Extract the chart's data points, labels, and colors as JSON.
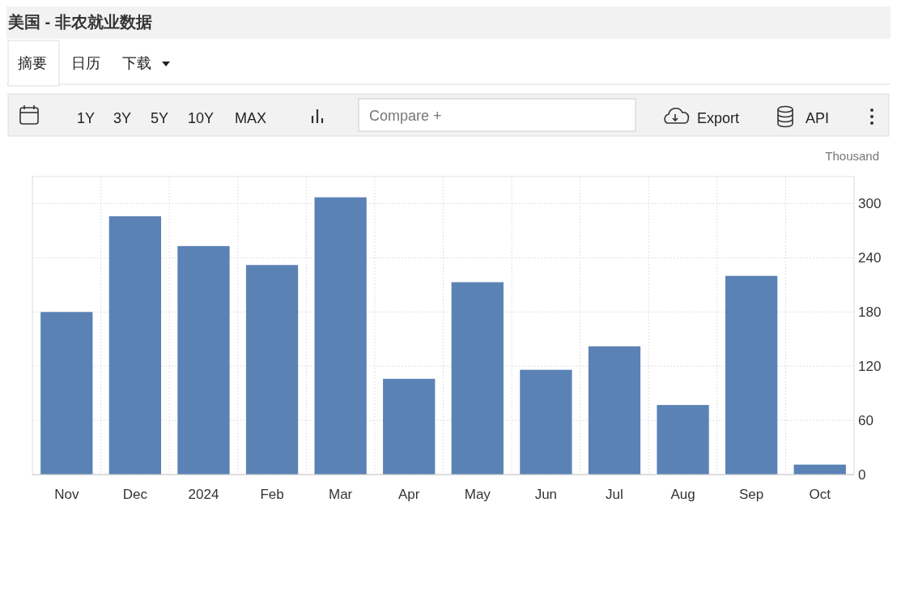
{
  "chart_data": {
    "type": "bar",
    "title": "美国 - 非农就业数据",
    "ylabel": "Thousand",
    "annotations": [
      "摘要",
      "日历",
      "下载",
      "1Y",
      "3Y",
      "5Y",
      "10Y",
      "MAX",
      "Compare +",
      "Export",
      "API"
    ],
    "categories": [
      "Nov",
      "Dec",
      "2024",
      "Feb",
      "Mar",
      "Apr",
      "May",
      "Jun",
      "Jul",
      "Aug",
      "Sep",
      "Oct"
    ],
    "values": [
      180,
      286,
      253,
      232,
      307,
      106,
      213,
      116,
      142,
      77,
      220,
      11
    ],
    "color": "#5b82b5",
    "ylim": [
      0,
      330
    ],
    "yticks": [
      0,
      60,
      120,
      180,
      240,
      300
    ],
    "grid": true
  }
}
